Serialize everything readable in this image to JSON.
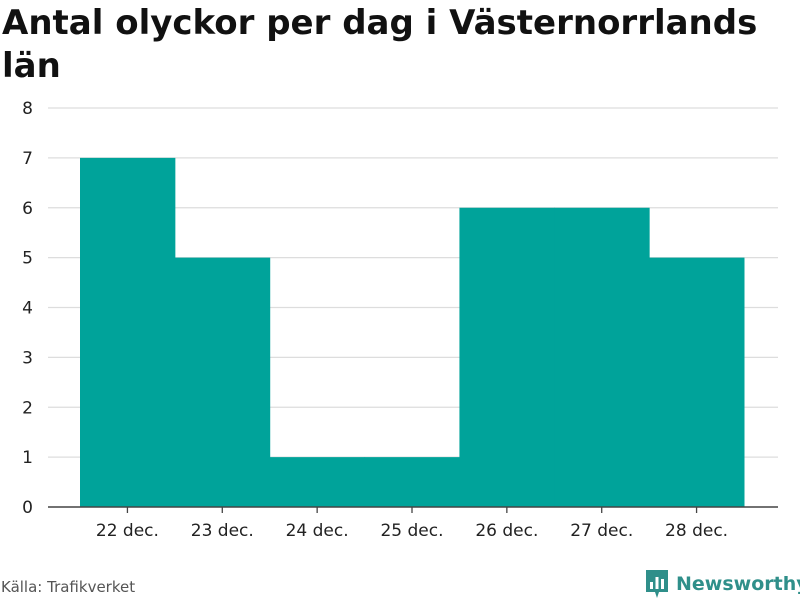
{
  "chart_data": {
    "type": "bar",
    "title": "Antal olyckor per dag i Västernorrlands län",
    "categories": [
      "22 dec.",
      "23 dec.",
      "24 dec.",
      "25 dec.",
      "26 dec.",
      "27 dec.",
      "28 dec."
    ],
    "values": [
      7,
      5,
      1,
      1,
      6,
      6,
      5
    ],
    "ylim": [
      0,
      8
    ],
    "yticks": [
      0,
      1,
      2,
      3,
      4,
      5,
      6,
      7,
      8
    ],
    "xlabel": "",
    "ylabel": "",
    "grid": true,
    "bar_color": "#00a39a"
  },
  "footer": {
    "source": "Källa: Trafikverket",
    "brand": "Newsworthy"
  },
  "colors": {
    "bar": "#00a39a",
    "brand": "#2f8f8a",
    "grid": "#dddddd"
  }
}
